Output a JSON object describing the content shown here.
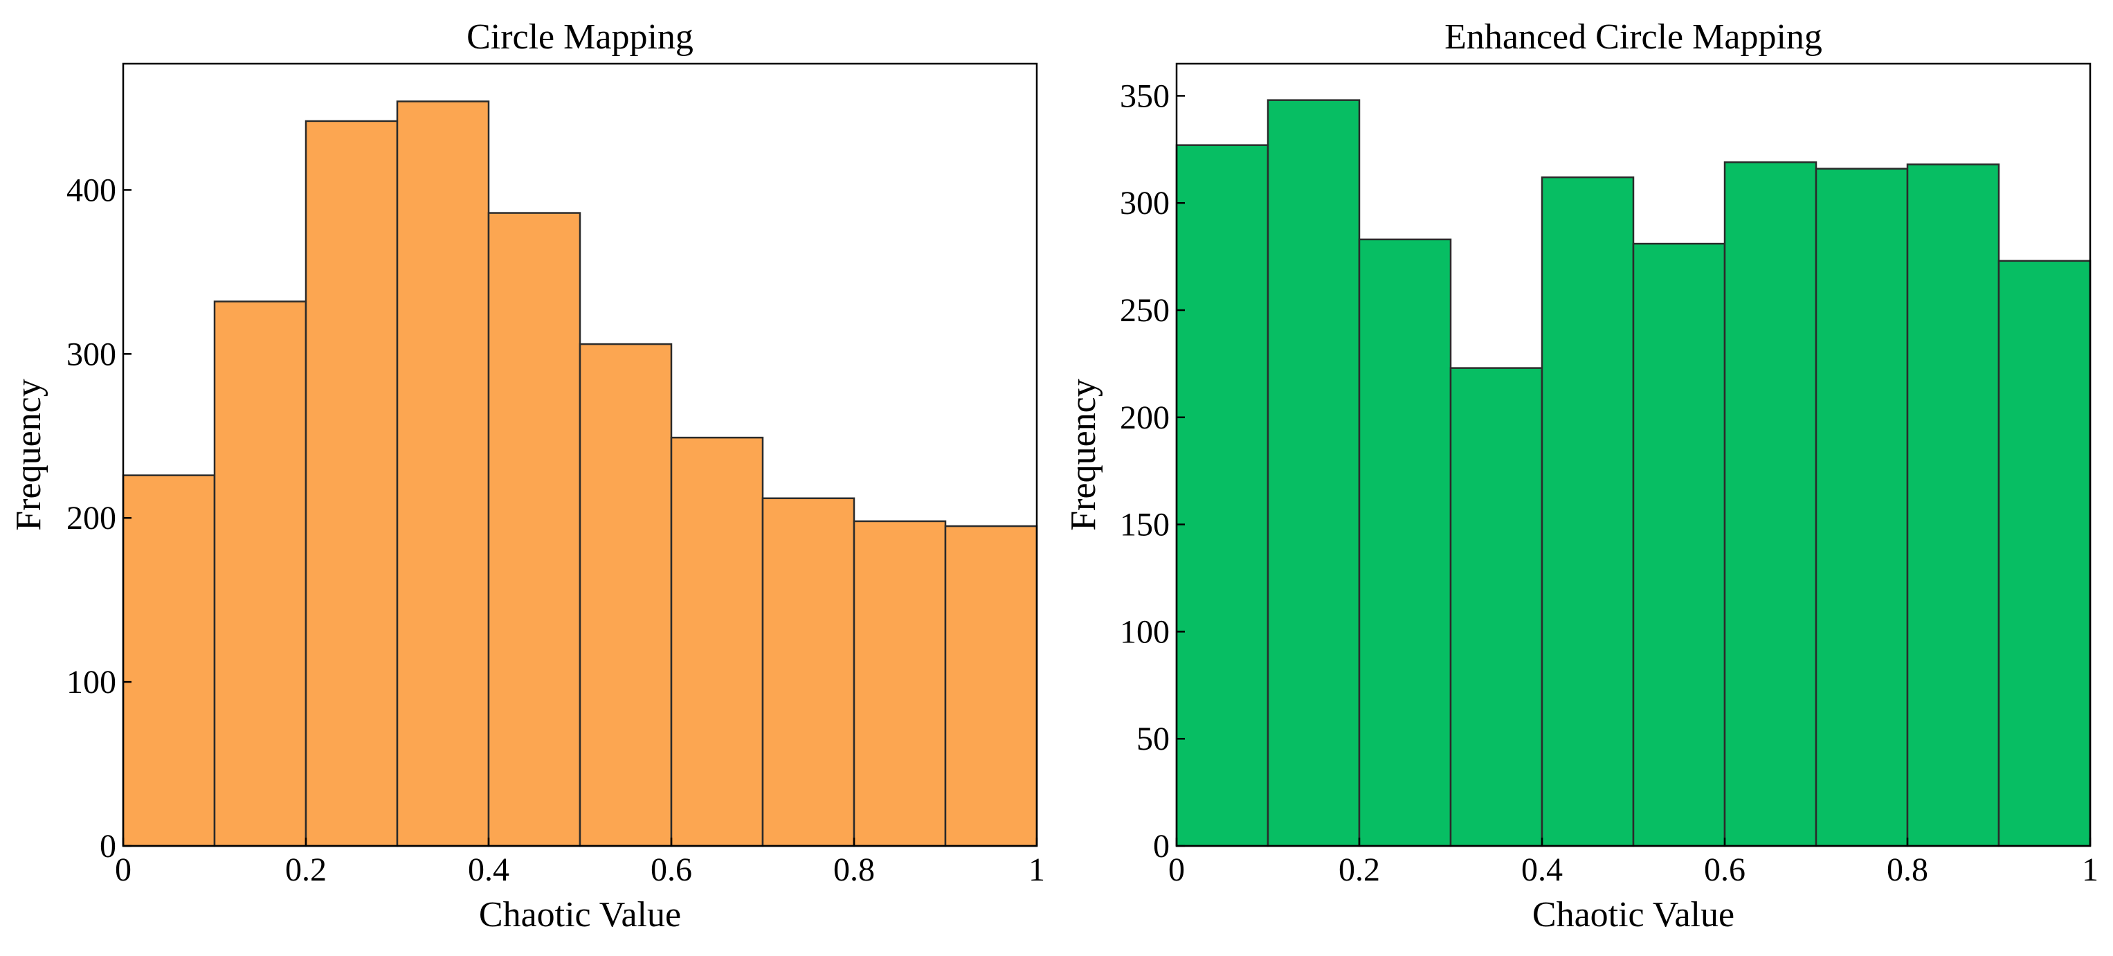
{
  "chart_data": [
    {
      "type": "bar",
      "title": "Circle Mapping",
      "xlabel": "Chaotic Value",
      "ylabel": "Frequency",
      "bin_edges": [
        0,
        0.1,
        0.2,
        0.3,
        0.4,
        0.5,
        0.6,
        0.7,
        0.8,
        0.9,
        1.0
      ],
      "values": [
        226,
        332,
        442,
        454,
        386,
        306,
        249,
        212,
        198,
        195
      ],
      "xlim": [
        0,
        1
      ],
      "ylim": [
        0,
        477
      ],
      "xticks": [
        0,
        0.2,
        0.4,
        0.6,
        0.8,
        1
      ],
      "xtick_labels": [
        "0",
        "0.2",
        "0.4",
        "0.6",
        "0.8",
        "1"
      ],
      "yticks": [
        0,
        100,
        200,
        300,
        400
      ],
      "ytick_labels": [
        "0",
        "100",
        "200",
        "300",
        "400"
      ],
      "color": "#FCA651",
      "grid": false
    },
    {
      "type": "bar",
      "title": "Enhanced Circle Mapping",
      "xlabel": "Chaotic Value",
      "ylabel": "Frequency",
      "bin_edges": [
        0,
        0.1,
        0.2,
        0.3,
        0.4,
        0.5,
        0.6,
        0.7,
        0.8,
        0.9,
        1.0
      ],
      "values": [
        327,
        348,
        283,
        223,
        312,
        281,
        319,
        316,
        318,
        273
      ],
      "xlim": [
        0,
        1
      ],
      "ylim": [
        0,
        365
      ],
      "xticks": [
        0,
        0.2,
        0.4,
        0.6,
        0.8,
        1
      ],
      "xtick_labels": [
        "0",
        "0.2",
        "0.4",
        "0.6",
        "0.8",
        "1"
      ],
      "yticks": [
        0,
        50,
        100,
        150,
        200,
        250,
        300,
        350
      ],
      "ytick_labels": [
        "0",
        "50",
        "100",
        "150",
        "200",
        "250",
        "300",
        "350"
      ],
      "color": "#07BE63",
      "grid": false
    }
  ]
}
